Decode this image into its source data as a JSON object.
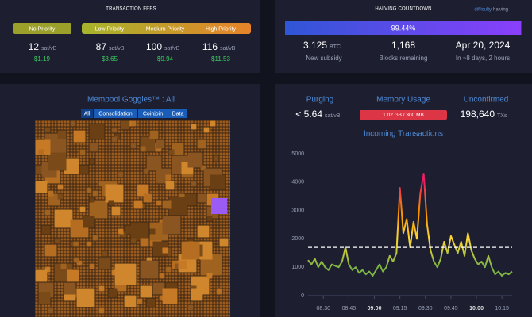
{
  "transaction_fees": {
    "title": "TRANSACTION FEES",
    "unit": "sat/vB",
    "priorities": [
      {
        "label": "No Priority",
        "rate": "12",
        "usd": "$1.19"
      },
      {
        "label": "Low Priority",
        "rate": "87",
        "usd": "$8.65"
      },
      {
        "label": "Medium Priority",
        "rate": "100",
        "usd": "$9.94"
      },
      {
        "label": "High Priority",
        "rate": "116",
        "usd": "$11.53"
      }
    ]
  },
  "halving": {
    "title": "HALVING COUNTDOWN",
    "toggle": [
      "difficulty",
      "halving"
    ],
    "progress": 99.44,
    "progress_label": "99.44%",
    "stats": [
      {
        "value": "3.125",
        "unit": "BTC",
        "label": "New subsidy"
      },
      {
        "value": "1,168",
        "label": "Blocks remaining"
      },
      {
        "value": "Apr 20, 2024",
        "label": "In ~8 days, 2 hours"
      }
    ]
  },
  "goggles": {
    "title": "Mempool Goggles™ : All",
    "filters": [
      "All",
      "Consolidation",
      "Coinjoin",
      "Data"
    ]
  },
  "mempool": {
    "purging": {
      "label": "Purging",
      "value": "< 5.64",
      "unit": "sat/vB"
    },
    "memory_usage": {
      "label": "Memory Usage",
      "value": "1.02 GB / 300 MB"
    },
    "unconfirmed": {
      "label": "Unconfirmed",
      "value": "198,640",
      "unit": "TXs"
    }
  },
  "chart_data": {
    "type": "line",
    "title": "Incoming Transactions",
    "x": [
      "08:21",
      "08:23",
      "08:25",
      "08:27",
      "08:29",
      "08:31",
      "08:33",
      "08:35",
      "08:37",
      "08:39",
      "08:41",
      "08:43",
      "08:45",
      "08:47",
      "08:49",
      "08:51",
      "08:53",
      "08:55",
      "08:57",
      "08:59",
      "09:01",
      "09:03",
      "09:05",
      "09:07",
      "09:09",
      "09:11",
      "09:13",
      "09:15",
      "09:17",
      "09:19",
      "09:21",
      "09:23",
      "09:25",
      "09:27",
      "09:29",
      "09:31",
      "09:33",
      "09:35",
      "09:37",
      "09:39",
      "09:41",
      "09:43",
      "09:45",
      "09:47",
      "09:49",
      "09:51",
      "09:53",
      "09:55",
      "09:57",
      "09:59",
      "10:01",
      "10:03",
      "10:05",
      "10:07",
      "10:09",
      "10:11",
      "10:13",
      "10:15",
      "10:17",
      "10:19",
      "10:21"
    ],
    "values": [
      1250,
      1100,
      1300,
      1000,
      1200,
      1000,
      900,
      1100,
      1050,
      1000,
      1200,
      1700,
      1100,
      900,
      1000,
      800,
      900,
      750,
      850,
      700,
      900,
      1100,
      850,
      1000,
      1400,
      1200,
      1500,
      3800,
      2200,
      2700,
      1700,
      2600,
      2000,
      3600,
      4300,
      2500,
      1600,
      1200,
      1000,
      1300,
      1900,
      1500,
      2100,
      1800,
      1500,
      1900,
      1400,
      2200,
      1600,
      1300,
      1100,
      1200,
      1000,
      1400,
      1000,
      750,
      850,
      700,
      800,
      750,
      850
    ],
    "xlim": [
      "08:21",
      "10:21"
    ],
    "xticks": [
      "08:30",
      "08:45",
      "09:00",
      "09:15",
      "09:30",
      "09:45",
      "10:00",
      "10:15"
    ],
    "ylim": [
      0,
      5000
    ],
    "yticks": [
      0,
      1000,
      2000,
      3000,
      4000,
      5000
    ],
    "reference_line": 1700,
    "color_scale": [
      {
        "value": 1000,
        "color": "#7cb342"
      },
      {
        "value": 2000,
        "color": "#fdd835"
      },
      {
        "value": 3000,
        "color": "#fb8c00"
      },
      {
        "value": 4000,
        "color": "#e91e63"
      }
    ],
    "grid": false
  }
}
